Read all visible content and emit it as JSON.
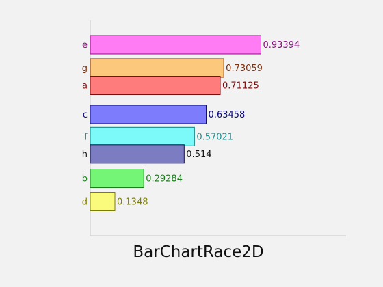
{
  "chart_data": {
    "type": "bar",
    "orientation": "horizontal",
    "title": "BarChartRace2D",
    "xlabel": "",
    "ylabel": "",
    "xlim": [
      0,
      1.4
    ],
    "grid": false,
    "bars": [
      {
        "label": "e",
        "value": 0.93394,
        "value_label": "0.93394",
        "rank": 0.0,
        "fill": "#ff7cf4",
        "stroke": "#8b0d80",
        "text_color": "#8b0d80"
      },
      {
        "label": "g",
        "value": 0.73059,
        "value_label": "0.73059",
        "rank": 1.0,
        "fill": "#fcc97c",
        "stroke": "#7d2e0d",
        "text_color": "#7d2e0d"
      },
      {
        "label": "a",
        "value": 0.71125,
        "value_label": "0.71125",
        "rank": 1.75,
        "fill": "#fe7c7c",
        "stroke": "#7d0d0d",
        "text_color": "#7d0d0d"
      },
      {
        "label": "c",
        "value": 0.63458,
        "value_label": "0.63458",
        "rank": 3.0,
        "fill": "#7c7cfc",
        "stroke": "#0d0d7d",
        "text_color": "#0d0d7d"
      },
      {
        "label": "f",
        "value": 0.57021,
        "value_label": "0.57021",
        "rank": 3.95,
        "fill": "#7cfafa",
        "stroke": "#0d8080",
        "text_color": "#1a9090"
      },
      {
        "label": "h",
        "value": 0.514,
        "value_label": "0.514",
        "rank": 4.7,
        "fill": "#7c7cc2",
        "stroke": "#0d0d3a",
        "text_color": "#111111"
      },
      {
        "label": "b",
        "value": 0.29284,
        "value_label": "0.29284",
        "rank": 5.75,
        "fill": "#75f575",
        "stroke": "#1a7d1a",
        "text_color": "#1a7d1a"
      },
      {
        "label": "d",
        "value": 0.1348,
        "value_label": "0.1348",
        "rank": 6.75,
        "fill": "#fafa7c",
        "stroke": "#7d7d0d",
        "text_color": "#7d7d0d"
      }
    ]
  }
}
